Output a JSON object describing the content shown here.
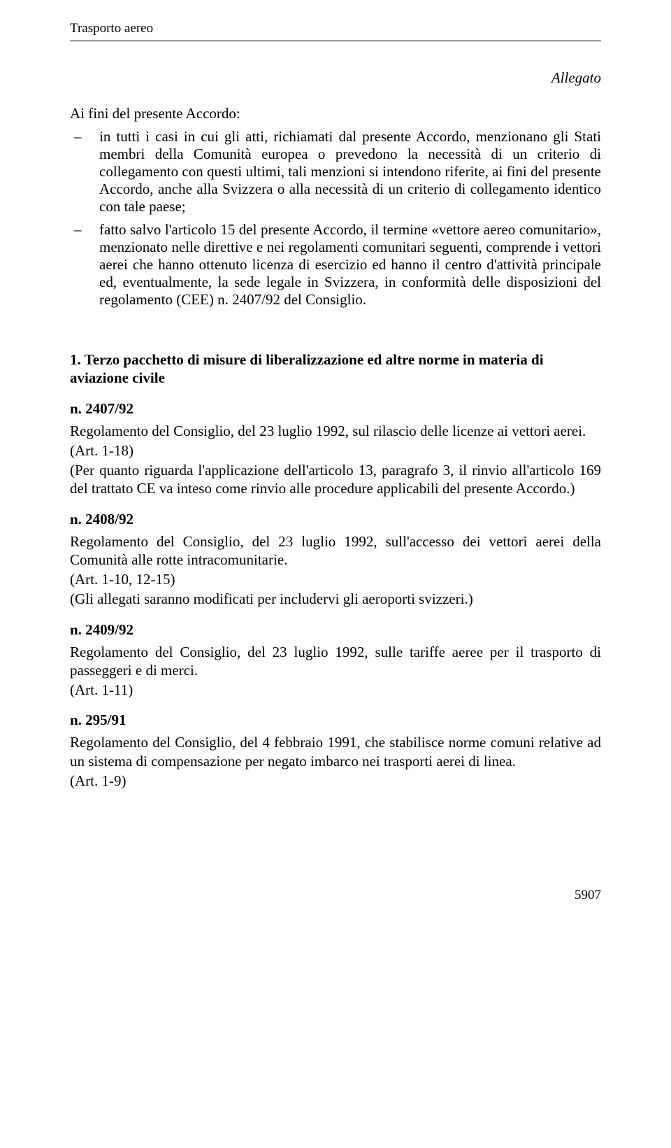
{
  "running_head": "Trasporto aereo",
  "allegato": "Allegato",
  "intro": "Ai fini del presente Accordo:",
  "bullets": [
    "in tutti i casi in cui gli atti, richiamati dal presente Accordo, menzionano gli Stati membri della Comunità europea o prevedono la necessità di un criterio di collegamento con questi ultimi, tali menzioni si intendono riferite, ai fini del presente Accordo, anche alla Svizzera o alla necessità di un criterio di collegamento identico con tale paese;",
    "fatto salvo l'articolo 15 del presente Accordo, il termine «vettore aereo comunitario», menzionato nelle direttive e nei regolamenti comunitari seguenti, comprende i vettori aerei che hanno ottenuto licenza di esercizio ed hanno il centro d'attività principale ed, eventualmente, la sede legale in Svizzera, in conformità delle disposizioni del regolamento (CEE) n. 2407/92 del Consiglio."
  ],
  "section_title": "1. Terzo pacchetto di misure di liberalizzazione ed altre norme in materia di aviazione civile",
  "regs": [
    {
      "num": "n. 2407/92",
      "lines": [
        "Regolamento del Consiglio, del 23 luglio 1992, sul rilascio delle licenze ai vettori aerei.",
        "(Art. 1-18)",
        "(Per quanto riguarda l'applicazione dell'articolo 13, paragrafo 3, il rinvio all'articolo 169 del trattato CE va inteso come rinvio alle procedure applicabili del presente Accordo.)"
      ]
    },
    {
      "num": "n. 2408/92",
      "lines": [
        "Regolamento del Consiglio, del 23 luglio 1992, sull'accesso dei vettori aerei della Comunità alle rotte intracomunitarie.",
        "(Art. 1-10, 12-15)",
        "(Gli allegati saranno modificati per includervi gli aeroporti svizzeri.)"
      ]
    },
    {
      "num": "n. 2409/92",
      "lines": [
        "Regolamento del Consiglio, del 23 luglio 1992, sulle tariffe aeree per il trasporto di passeggeri e di merci.",
        "(Art. 1-11)"
      ]
    },
    {
      "num": "n. 295/91",
      "lines": [
        "Regolamento del Consiglio, del 4 febbraio 1991, che stabilisce norme comuni relative ad un sistema di compensazione per negato imbarco nei trasporti aerei di linea.",
        "(Art. 1-9)"
      ]
    }
  ],
  "page_number": "5907"
}
